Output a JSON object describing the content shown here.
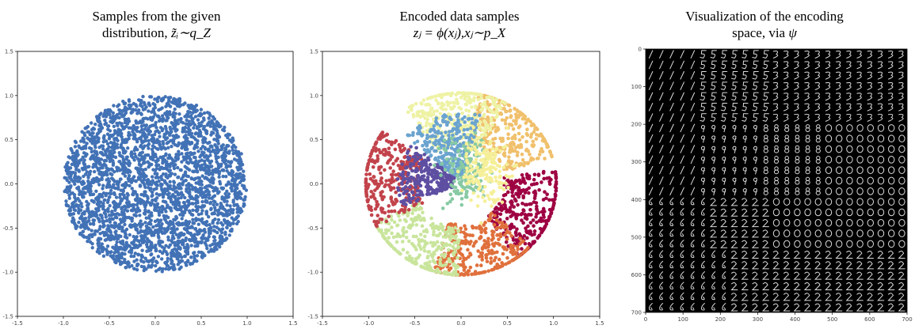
{
  "panels": [
    {
      "title_line1": "Samples from the given",
      "title_line2_text": "distribution, ",
      "title_math": "z̃ᵢ∼q_Z"
    },
    {
      "title_line1": "Encoded data samples",
      "title_math_line2": "zⱼ = ϕ(xⱼ),xⱼ∼p_X"
    },
    {
      "title_line1": "Visualization of the encoding",
      "title_line2_text": "space, via ",
      "title_math": "ψ"
    }
  ],
  "chart_data": [
    {
      "type": "scatter",
      "title": "Samples from the given distribution, z̃ᵢ∼q_Z",
      "xlim": [
        -1.5,
        1.5
      ],
      "ylim": [
        -1.5,
        1.5
      ],
      "xticks": [
        "-1.5",
        "-1.0",
        "-0.5",
        "0.0",
        "0.5",
        "1.0",
        "1.5"
      ],
      "yticks": [
        "1.5",
        "1.0",
        "0.5",
        "0.0",
        "-0.5",
        "-1.0",
        "-1.5"
      ],
      "series": [
        {
          "color": "#4272b6",
          "distribution": "uniform unit disk",
          "center": [
            0,
            0
          ],
          "radius": 1.0
        }
      ]
    },
    {
      "type": "scatter",
      "title": "Encoded data samples zⱼ = ϕ(xⱼ),xⱼ∼p_X",
      "xlim": [
        -1.5,
        1.5
      ],
      "ylim": [
        -1.5,
        1.5
      ],
      "xticks": [
        "-1.5",
        "-1.0",
        "-0.5",
        "0.0",
        "0.5",
        "1.0",
        "1.5"
      ],
      "yticks": [
        "1.5",
        "1.0",
        "0.5",
        "0.0",
        "-0.5",
        "-1.0",
        "-1.5"
      ],
      "clusters": [
        {
          "color": "#9e0142",
          "center": [
            0.72,
            -0.3
          ]
        },
        {
          "color": "#e0703c",
          "center": [
            0.2,
            -0.75
          ]
        },
        {
          "color": "#c9e59c",
          "center": [
            -0.45,
            -0.68
          ]
        },
        {
          "color": "#c2434b",
          "center": [
            -0.78,
            0.05
          ]
        },
        {
          "color": "#f0c06c",
          "center": [
            0.52,
            0.58
          ]
        },
        {
          "color": "#eef2a4",
          "center": [
            -0.05,
            0.75
          ]
        },
        {
          "color": "#6aa3cf",
          "center": [
            -0.12,
            0.4
          ]
        },
        {
          "color": "#5e4fa2",
          "center": [
            -0.3,
            0.05
          ]
        },
        {
          "color": "#87c9a4",
          "center": [
            0.05,
            0.15
          ]
        },
        {
          "color": "#f5ef98",
          "center": [
            0.25,
            0.15
          ]
        }
      ]
    },
    {
      "type": "heatmap",
      "title": "Visualization of the encoding space, via ψ",
      "xlim": [
        0,
        700
      ],
      "ylim": [
        700,
        0
      ],
      "xticks": [
        "0",
        "100",
        "200",
        "300",
        "400",
        "500",
        "600",
        "700"
      ],
      "yticks": [
        "0",
        "100",
        "200",
        "300",
        "400",
        "500",
        "600",
        "700"
      ],
      "grid_size": [
        25,
        25
      ],
      "cell_content": "decoded digit images"
    }
  ]
}
